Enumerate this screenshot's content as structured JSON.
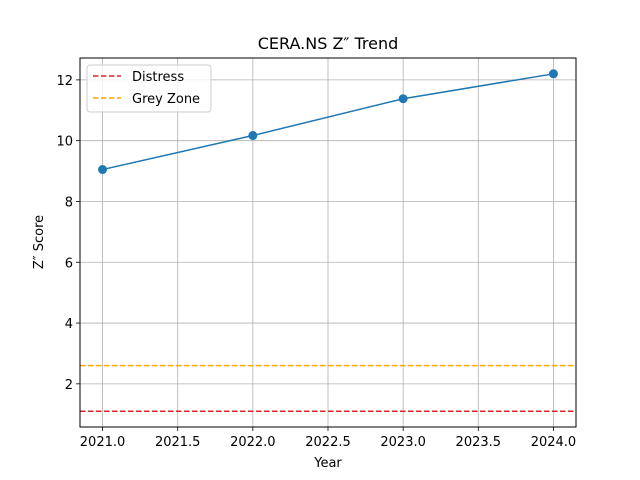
{
  "chart_data": {
    "type": "line",
    "title": "CERA.NS Z″ Trend",
    "xlabel": "Year",
    "ylabel": "Z″ Score",
    "xlim": [
      2020.85,
      2024.15
    ],
    "ylim": [
      0.58,
      12.72
    ],
    "xticks": [
      2021.0,
      2021.5,
      2022.0,
      2022.5,
      2023.0,
      2023.5,
      2024.0
    ],
    "xtick_labels": [
      "2021.0",
      "2021.5",
      "2022.0",
      "2022.5",
      "2023.0",
      "2023.5",
      "2024.0"
    ],
    "yticks": [
      2,
      4,
      6,
      8,
      10,
      12
    ],
    "ytick_labels": [
      "2",
      "4",
      "6",
      "8",
      "10",
      "12"
    ],
    "grid": true,
    "legend_position": "top-left",
    "series": [
      {
        "x": [
          2021,
          2022,
          2023,
          2024
        ],
        "y": [
          9.05,
          10.17,
          11.38,
          12.2
        ],
        "color": "#1f77b4",
        "marker": "circle"
      }
    ],
    "reference_lines": [
      {
        "name": "Distress",
        "y": 1.1,
        "color": "#d62728",
        "style": "dashed"
      },
      {
        "name": "Grey Zone",
        "y": 2.6,
        "color": "#ffa500",
        "style": "dashed"
      }
    ]
  }
}
